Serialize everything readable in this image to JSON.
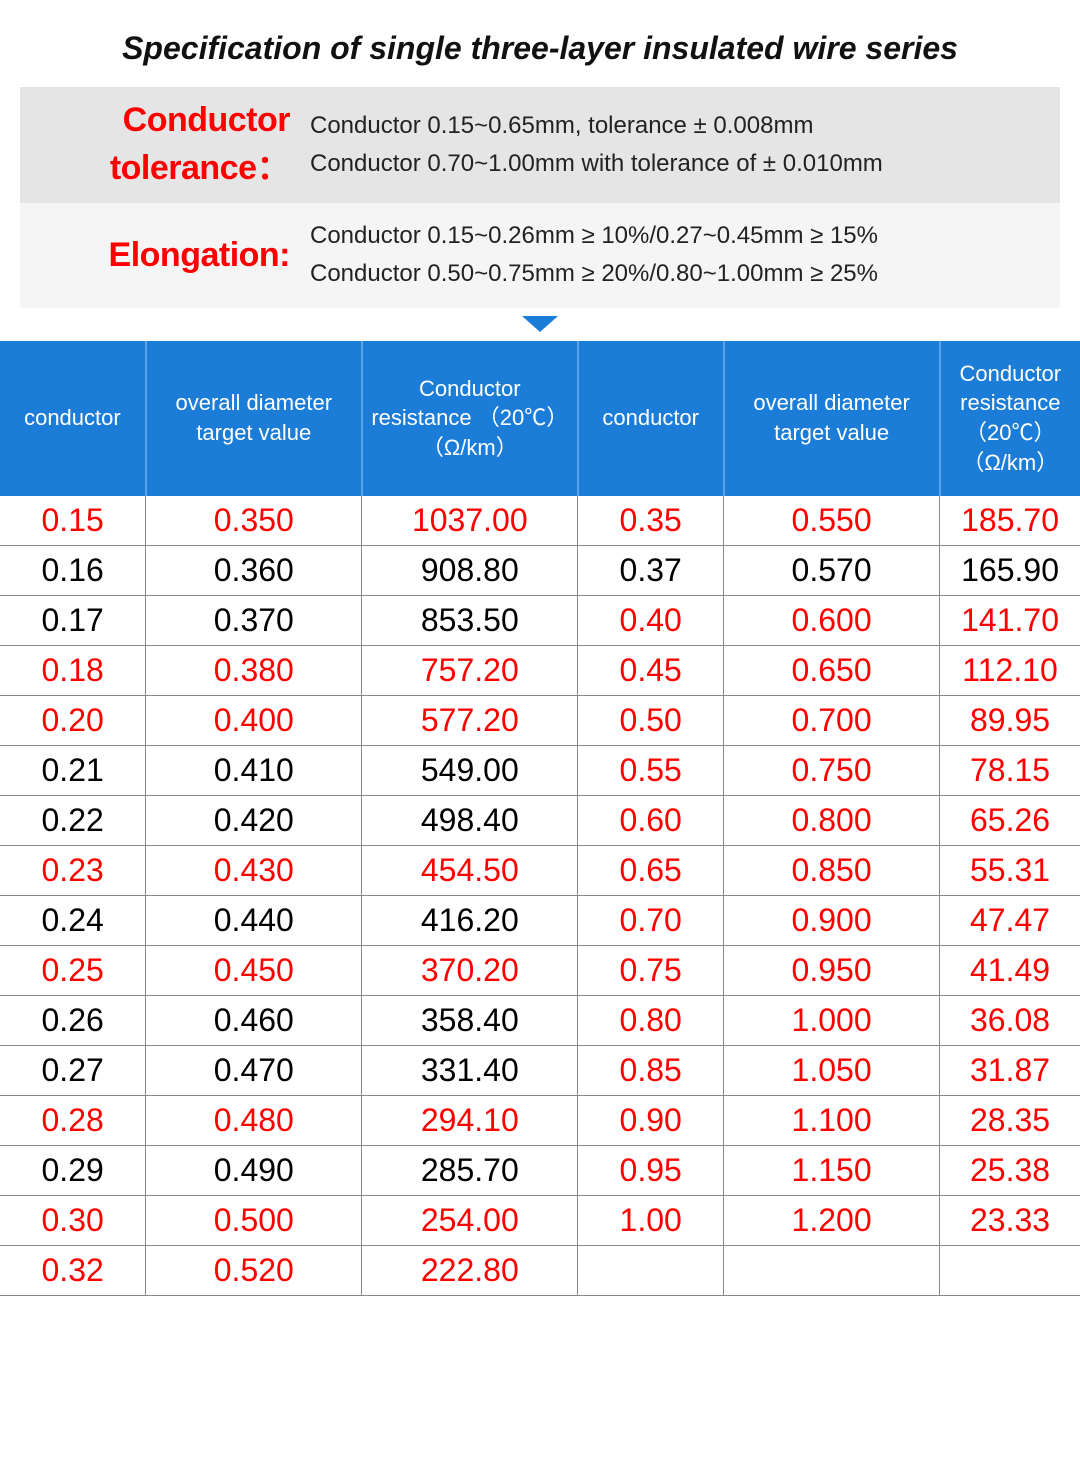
{
  "title": "Specification of single three-layer insulated wire series",
  "spec1": {
    "label": "Conductor tolerance：",
    "line1": "Conductor 0.15~0.65mm, tolerance ± 0.008mm",
    "line2": "Conductor 0.70~1.00mm with tolerance of ± 0.010mm"
  },
  "spec2": {
    "label": "Elongation:",
    "line1": "Conductor 0.15~0.26mm ≥ 10%/0.27~0.45mm ≥ 15%",
    "line2": "Conductor 0.50~0.75mm ≥ 20%/0.80~1.00mm ≥ 25%"
  },
  "table": {
    "columns": [
      "conductor",
      "overall diameter target value",
      "Conductor resistance （20℃）（Ω/km）",
      "conductor",
      "overall diameter target value",
      "Conductor resistance （20℃）（Ω/km）"
    ],
    "col_widths_pct": [
      13.5,
      20,
      20,
      13.5,
      20,
      13
    ],
    "header_bg": "#1b7dd7",
    "header_fg": "#ffffff",
    "red": "#ff0000",
    "black": "#000000",
    "rows": [
      {
        "l": [
          "0.15",
          "0.350",
          "1037.00"
        ],
        "lc": "red",
        "r": [
          "0.35",
          "0.550",
          "185.70"
        ],
        "rc": "red"
      },
      {
        "l": [
          "0.16",
          "0.360",
          "908.80"
        ],
        "lc": "blk",
        "r": [
          "0.37",
          "0.570",
          "165.90"
        ],
        "rc": "blk"
      },
      {
        "l": [
          "0.17",
          "0.370",
          "853.50"
        ],
        "lc": "blk",
        "r": [
          "0.40",
          "0.600",
          "141.70"
        ],
        "rc": "red"
      },
      {
        "l": [
          "0.18",
          "0.380",
          "757.20"
        ],
        "lc": "red",
        "r": [
          "0.45",
          "0.650",
          "112.10"
        ],
        "rc": "red"
      },
      {
        "l": [
          "0.20",
          "0.400",
          "577.20"
        ],
        "lc": "red",
        "r": [
          "0.50",
          "0.700",
          "89.95"
        ],
        "rc": "red"
      },
      {
        "l": [
          "0.21",
          "0.410",
          "549.00"
        ],
        "lc": "blk",
        "r": [
          "0.55",
          "0.750",
          "78.15"
        ],
        "rc": "red"
      },
      {
        "l": [
          "0.22",
          "0.420",
          "498.40"
        ],
        "lc": "blk",
        "r": [
          "0.60",
          "0.800",
          "65.26"
        ],
        "rc": "red"
      },
      {
        "l": [
          "0.23",
          "0.430",
          "454.50"
        ],
        "lc": "red",
        "r": [
          "0.65",
          "0.850",
          "55.31"
        ],
        "rc": "red"
      },
      {
        "l": [
          "0.24",
          "0.440",
          "416.20"
        ],
        "lc": "blk",
        "r": [
          "0.70",
          "0.900",
          "47.47"
        ],
        "rc": "red"
      },
      {
        "l": [
          "0.25",
          "0.450",
          "370.20"
        ],
        "lc": "red",
        "r": [
          "0.75",
          "0.950",
          "41.49"
        ],
        "rc": "red"
      },
      {
        "l": [
          "0.26",
          "0.460",
          "358.40"
        ],
        "lc": "blk",
        "r": [
          "0.80",
          "1.000",
          "36.08"
        ],
        "rc": "red"
      },
      {
        "l": [
          "0.27",
          "0.470",
          "331.40"
        ],
        "lc": "blk",
        "r": [
          "0.85",
          "1.050",
          "31.87"
        ],
        "rc": "red"
      },
      {
        "l": [
          "0.28",
          "0.480",
          "294.10"
        ],
        "lc": "red",
        "r": [
          "0.90",
          "1.100",
          "28.35"
        ],
        "rc": "red"
      },
      {
        "l": [
          "0.29",
          "0.490",
          "285.70"
        ],
        "lc": "blk",
        "r": [
          "0.95",
          "1.150",
          "25.38"
        ],
        "rc": "red"
      },
      {
        "l": [
          "0.30",
          "0.500",
          "254.00"
        ],
        "lc": "red",
        "r": [
          "1.00",
          "1.200",
          "23.33"
        ],
        "rc": "red"
      },
      {
        "l": [
          "0.32",
          "0.520",
          "222.80"
        ],
        "lc": "red",
        "r": [
          "",
          "",
          ""
        ],
        "rc": "blk"
      }
    ]
  }
}
